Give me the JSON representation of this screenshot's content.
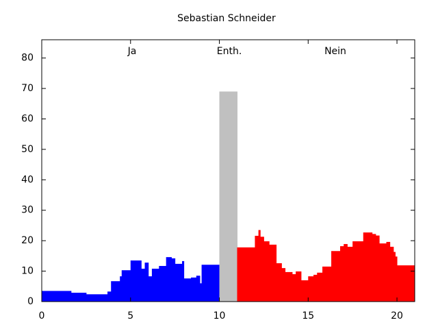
{
  "chart_data": {
    "type": "step-area",
    "title": "Sebastian Schneider",
    "annotations": [
      "Ja",
      "Enth.",
      "Nein"
    ],
    "xlim": [
      0,
      21
    ],
    "xticks": [
      0,
      5,
      10,
      15,
      20
    ],
    "ylim": [
      0,
      86
    ],
    "yticks": [
      0,
      10,
      20,
      30,
      40,
      50,
      60,
      70,
      80
    ],
    "series": [
      {
        "color": "#0000ff",
        "bins": [
          0,
          1.65,
          2.5,
          3.7,
          3.9,
          4.4,
          4.5,
          5.0,
          5.6,
          5.8,
          6.0,
          6.2,
          6.6,
          7.0,
          7.3,
          7.5,
          7.9,
          8.0,
          8.4,
          8.7,
          8.9,
          9.0,
          10
        ],
        "values": [
          3.5,
          2.9,
          2.4,
          3.3,
          6.7,
          8.3,
          10.3,
          13.5,
          10.8,
          12.8,
          8.3,
          10.8,
          11.7,
          14.6,
          14.2,
          12.4,
          13.3,
          7.6,
          7.9,
          8.5,
          6.0,
          12.1
        ]
      },
      {
        "color": "#c0c0c0",
        "bins": [
          10,
          11
        ],
        "values": [
          69
        ]
      },
      {
        "color": "#ff0000",
        "bins": [
          11,
          12.0,
          12.2,
          12.3,
          12.5,
          12.8,
          13.2,
          13.5,
          13.7,
          14.1,
          14.3,
          14.6,
          15.0,
          15.3,
          15.5,
          15.8,
          16.3,
          16.8,
          17.0,
          17.2,
          17.5,
          18.1,
          18.6,
          18.8,
          19.0,
          19.4,
          19.6,
          19.8,
          19.9,
          20.0,
          21
        ],
        "values": [
          17.8,
          21.6,
          23.5,
          21.3,
          19.8,
          18.7,
          12.6,
          11.0,
          9.7,
          9.0,
          9.9,
          7.0,
          8.3,
          8.8,
          9.5,
          11.5,
          16.6,
          18.2,
          18.9,
          18.0,
          19.8,
          22.7,
          22.2,
          21.7,
          19.1,
          19.6,
          18.0,
          16.3,
          14.8,
          11.9
        ]
      }
    ]
  }
}
